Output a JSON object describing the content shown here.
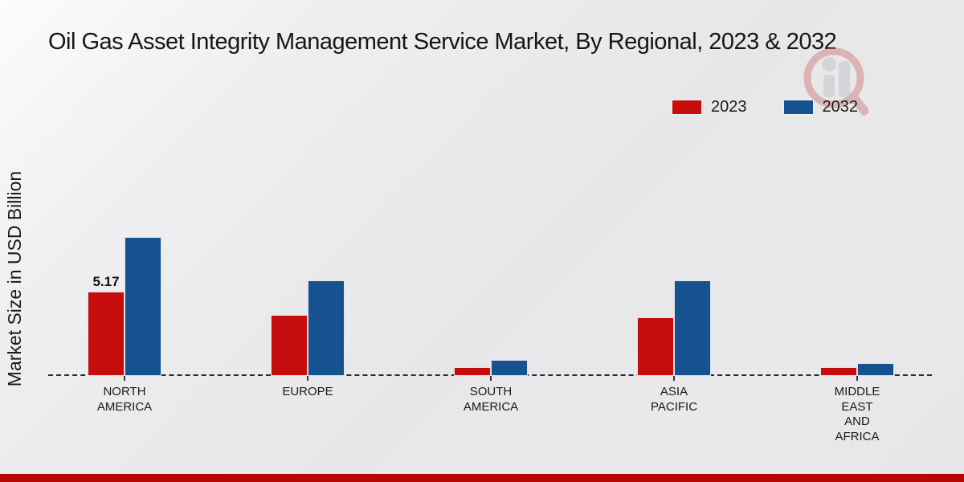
{
  "title": "Oil Gas Asset Integrity Management Service Market, By Regional, 2023 & 2032",
  "ylabel": "Market Size in USD Billion",
  "legend": [
    {
      "label": "2023",
      "color": "#c50d0d"
    },
    {
      "label": "2032",
      "color": "#175290"
    }
  ],
  "colors": {
    "accent_red": "#c50d0d",
    "accent_blue": "#175290",
    "footer_bar": "#b80605",
    "baseline": "#2b2b2b"
  },
  "watermark_icon": "market-research-logo",
  "chart_data": {
    "type": "bar",
    "title": "Oil Gas Asset Integrity Management Service Market, By Regional, 2023 & 2032",
    "xlabel": "",
    "ylabel": "Market Size in USD Billion",
    "categories": [
      "NORTH AMERICA",
      "EUROPE",
      "SOUTH AMERICA",
      "ASIA PACIFIC",
      "MIDDLE EAST AND AFRICA"
    ],
    "series": [
      {
        "name": "2023",
        "color": "#c50d0d",
        "values": [
          5.17,
          3.75,
          0.55,
          3.6,
          0.55
        ]
      },
      {
        "name": "2032",
        "color": "#175290",
        "values": [
          8.52,
          5.86,
          1.0,
          5.86,
          0.8
        ]
      }
    ],
    "annotations": [
      {
        "series_index": 0,
        "category_index": 0,
        "text": "5.17"
      }
    ],
    "ylim": [
      0,
      10
    ],
    "grid": false,
    "legend_position": "top-right",
    "baseline_style": "dashed"
  }
}
